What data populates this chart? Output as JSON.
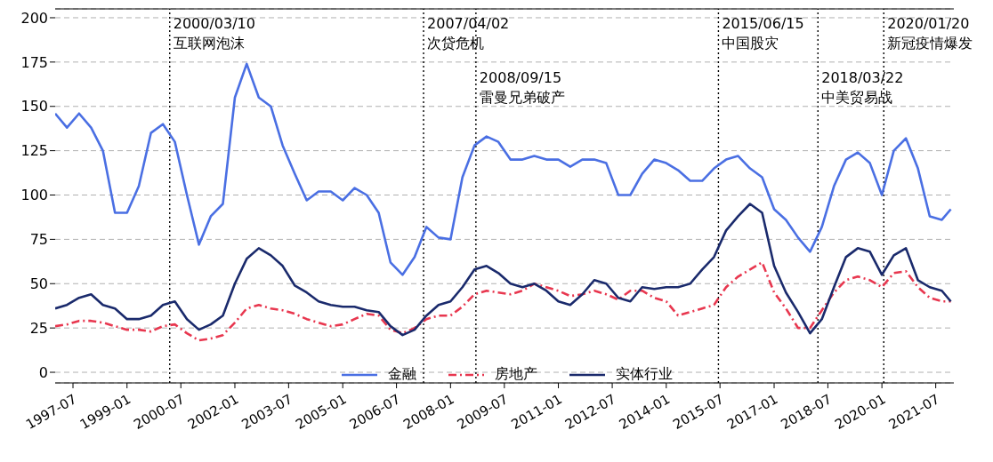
{
  "chart_data": {
    "type": "line",
    "x": [
      "1997-01",
      "1997-05",
      "1997-09",
      "1998-01",
      "1998-05",
      "1998-09",
      "1999-01",
      "1999-05",
      "1999-09",
      "2000-01",
      "2000-05",
      "2000-09",
      "2001-01",
      "2001-05",
      "2001-09",
      "2002-01",
      "2002-05",
      "2002-09",
      "2003-01",
      "2003-05",
      "2003-09",
      "2004-01",
      "2004-05",
      "2004-09",
      "2005-01",
      "2005-05",
      "2005-09",
      "2006-01",
      "2006-05",
      "2006-09",
      "2007-01",
      "2007-05",
      "2007-09",
      "2008-01",
      "2008-05",
      "2008-09",
      "2009-01",
      "2009-05",
      "2009-09",
      "2010-01",
      "2010-05",
      "2010-09",
      "2011-01",
      "2011-05",
      "2011-09",
      "2012-01",
      "2012-05",
      "2012-09",
      "2013-01",
      "2013-05",
      "2013-09",
      "2014-01",
      "2014-05",
      "2014-09",
      "2015-01",
      "2015-05",
      "2015-09",
      "2016-01",
      "2016-05",
      "2016-09",
      "2017-01",
      "2017-05",
      "2017-09",
      "2018-01",
      "2018-05",
      "2018-09",
      "2019-01",
      "2019-05",
      "2019-09",
      "2020-01",
      "2020-05",
      "2020-09",
      "2021-01",
      "2021-05",
      "2021-09",
      "2021-12"
    ],
    "series": [
      {
        "name": "金融",
        "color": "#4a6fe3",
        "line_style": "solid",
        "values": [
          146,
          138,
          146,
          138,
          125,
          90,
          90,
          105,
          135,
          140,
          130,
          100,
          72,
          88,
          95,
          155,
          174,
          155,
          150,
          128,
          112,
          97,
          102,
          102,
          97,
          104,
          100,
          90,
          62,
          55,
          65,
          82,
          76,
          75,
          110,
          128,
          133,
          130,
          120,
          120,
          122,
          120,
          120,
          116,
          120,
          120,
          118,
          100,
          100,
          112,
          120,
          118,
          114,
          108,
          108,
          115,
          120,
          122,
          115,
          110,
          92,
          86,
          76,
          68,
          82,
          105,
          120,
          124,
          118,
          100,
          125,
          132,
          115,
          88,
          86,
          92
        ]
      },
      {
        "name": "房地产",
        "color": "#e8374f",
        "line_style": "dashed",
        "values": [
          26,
          27,
          29,
          29,
          28,
          26,
          24,
          24,
          23,
          26,
          27,
          22,
          18,
          19,
          21,
          28,
          36,
          38,
          36,
          35,
          33,
          30,
          28,
          26,
          27,
          30,
          33,
          32,
          24,
          22,
          25,
          30,
          32,
          32,
          37,
          44,
          46,
          45,
          44,
          46,
          50,
          48,
          46,
          43,
          44,
          46,
          44,
          41,
          46,
          46,
          42,
          40,
          32,
          34,
          36,
          38,
          48,
          54,
          58,
          62,
          45,
          36,
          25,
          25,
          35,
          45,
          52,
          54,
          52,
          48,
          56,
          57,
          48,
          42,
          40,
          40
        ]
      },
      {
        "name": "实体行业",
        "color": "#1a2a6c",
        "line_style": "solid",
        "values": [
          36,
          38,
          42,
          44,
          38,
          36,
          30,
          30,
          32,
          38,
          40,
          30,
          24,
          27,
          32,
          50,
          64,
          70,
          66,
          60,
          49,
          45,
          40,
          38,
          37,
          37,
          35,
          34,
          26,
          21,
          24,
          32,
          38,
          40,
          48,
          58,
          60,
          56,
          50,
          48,
          50,
          46,
          40,
          38,
          44,
          52,
          50,
          42,
          40,
          48,
          47,
          48,
          48,
          50,
          58,
          65,
          80,
          88,
          95,
          90,
          60,
          45,
          34,
          22,
          30,
          48,
          65,
          70,
          68,
          55,
          66,
          70,
          52,
          48,
          46,
          40
        ]
      }
    ],
    "xlim": [
      "1997-01",
      "2022-01"
    ],
    "xticks": [
      "1997-07",
      "1999-01",
      "2000-07",
      "2002-01",
      "2003-07",
      "2005-01",
      "2006-07",
      "2008-01",
      "2009-07",
      "2011-01",
      "2012-07",
      "2014-01",
      "2015-07",
      "2017-01",
      "2018-07",
      "2020-01",
      "2021-07"
    ],
    "ylim": [
      -6,
      205
    ],
    "yticks": [
      0,
      25,
      50,
      75,
      100,
      125,
      150,
      175,
      200
    ],
    "grid": "y",
    "legend": "bottom",
    "ref_lines": [
      {
        "axis": "x",
        "value": "2000-03-10",
        "label": "2000/03/10\n互联网泡沫",
        "color": "#000000",
        "line_style": "dotted"
      },
      {
        "axis": "x",
        "value": "2007-04-02",
        "label": "2007/04/02\n次贷危机",
        "color": "#000000",
        "line_style": "dotted"
      },
      {
        "axis": "x",
        "value": "2008-09-15",
        "label": "2008/09/15\n雷曼兄弟破产",
        "color": "#000000",
        "line_style": "dotted"
      },
      {
        "axis": "x",
        "value": "2015-06-15",
        "label": "2015/06/15\n中国股灾",
        "color": "#000000",
        "line_style": "dotted"
      },
      {
        "axis": "x",
        "value": "2018-03-22",
        "label": "2018/03/22\n中美贸易战",
        "color": "#000000",
        "line_style": "dotted"
      },
      {
        "axis": "x",
        "value": "2020-01-20",
        "label": "2020/01/20\n新冠疫情爆发",
        "color": "#000000",
        "line_style": "dotted"
      }
    ]
  }
}
